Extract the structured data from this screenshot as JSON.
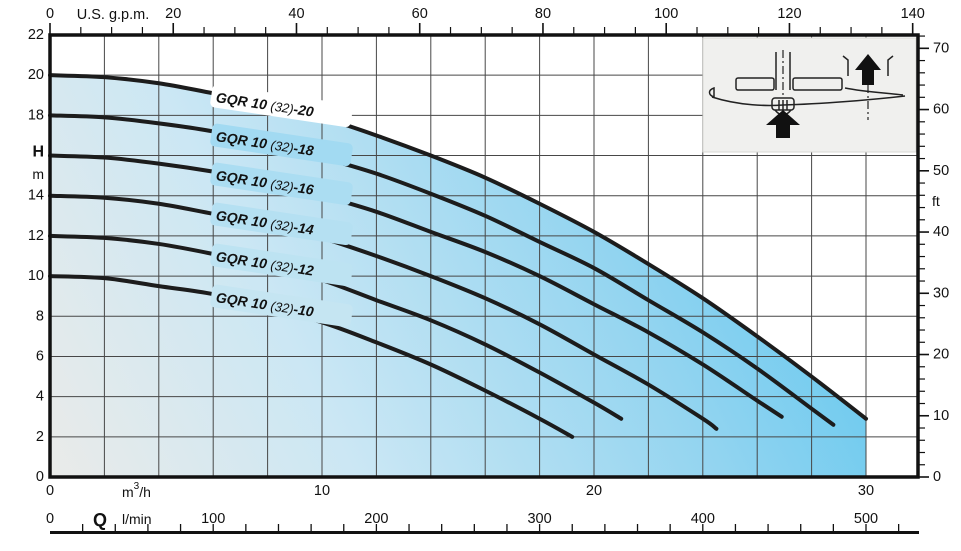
{
  "colors": {
    "background": "#ffffff",
    "grid_line": "#474747",
    "curve": "#1c1c1c",
    "border": "#111111",
    "inset_background": "#f0f0ee",
    "area_gradient_stops": [
      "#eaebe9",
      "#cbe7f4",
      "#92d4f0",
      "#4fc2ee"
    ],
    "label_halos": [
      "#ffffff",
      "#a2daf2",
      "#abddf2",
      "#b5e0f2",
      "#bde3f2",
      "#c5e5f2"
    ]
  },
  "top_axis": {
    "title": "U.S. g.p.m.",
    "tick_labels": [
      "0",
      "20",
      "40",
      "60",
      "80",
      "100",
      "120",
      "140"
    ],
    "tick_values": [
      0,
      20,
      40,
      60,
      80,
      100,
      120,
      140
    ],
    "minor_step": 5
  },
  "left_axis": {
    "symbol": "H",
    "unit": "m",
    "tick_labels": [
      "22",
      "20",
      "18",
      "14",
      "12",
      "10",
      "8",
      "6",
      "4",
      "2",
      "0"
    ],
    "tick_values": [
      22,
      20,
      18,
      14,
      12,
      10,
      8,
      6,
      4,
      2,
      0
    ]
  },
  "right_axis": {
    "unit": "ft",
    "tick_labels": [
      "70",
      "60",
      "50",
      "40",
      "30",
      "20",
      "10",
      "0"
    ],
    "tick_values": [
      70,
      60,
      50,
      40,
      30,
      20,
      10,
      0
    ],
    "minor_step": 2
  },
  "bottom_axis": {
    "flow_symbol": "Q",
    "m3h_unit_parts": {
      "base": "m",
      "sup": "3",
      "rest": "/h"
    },
    "m3h_tick_labels": [
      "0",
      "10",
      "20",
      "30"
    ],
    "m3h_tick_values": [
      0,
      10,
      20,
      30
    ],
    "lmin_unit": "l/min",
    "lmin_tick_labels": [
      "0",
      "100",
      "200",
      "300",
      "400",
      "500"
    ],
    "lmin_tick_values": [
      0,
      100,
      200,
      300,
      400,
      500
    ],
    "lmin_ruler_minor_step": 20
  },
  "inset": {
    "description": "pump cross-section schematic with upward flow arrows",
    "arrow_icon": "up-arrow"
  },
  "chart_data": {
    "type": "line",
    "title": "GQR 10 (32) pump performance curves",
    "xlabel": "Q",
    "x_units": [
      "m³/h",
      "l/min",
      "U.S. g.p.m."
    ],
    "ylabel": "H",
    "y_units": [
      "m",
      "ft"
    ],
    "xlim_m3h": [
      0,
      31.9
    ],
    "ylim_m": [
      0,
      22
    ],
    "grid": true,
    "shaded_envelope": {
      "max_q_m3h": 30,
      "note": "operating range shaded under top curve"
    },
    "series": [
      {
        "name": "GQR 10 (32)-20",
        "label_parts": {
          "prefix": "GQR 10 ",
          "mid": "(32)",
          "suffix": "-20"
        },
        "points": [
          [
            0,
            20.0
          ],
          [
            2,
            19.9
          ],
          [
            4,
            19.6
          ],
          [
            6,
            19.1
          ],
          [
            8,
            18.6
          ],
          [
            10,
            17.9
          ],
          [
            12,
            17.0
          ],
          [
            14,
            16.0
          ],
          [
            16,
            14.9
          ],
          [
            18,
            13.6
          ],
          [
            20,
            12.2
          ],
          [
            22,
            10.6
          ],
          [
            24,
            8.9
          ],
          [
            26,
            7.0
          ],
          [
            28,
            5.0
          ],
          [
            30,
            2.9
          ]
        ]
      },
      {
        "name": "GQR 10 (32)-18",
        "label_parts": {
          "prefix": "GQR 10 ",
          "mid": "(32)",
          "suffix": "-18"
        },
        "points": [
          [
            0,
            18.0
          ],
          [
            2,
            17.9
          ],
          [
            4,
            17.6
          ],
          [
            6,
            17.2
          ],
          [
            8,
            16.6
          ],
          [
            10,
            15.9
          ],
          [
            12,
            15.1
          ],
          [
            14,
            14.1
          ],
          [
            16,
            13.0
          ],
          [
            18,
            11.7
          ],
          [
            20,
            10.4
          ],
          [
            22,
            8.8
          ],
          [
            24,
            7.2
          ],
          [
            26,
            5.4
          ],
          [
            28,
            3.4
          ],
          [
            28.8,
            2.6
          ]
        ]
      },
      {
        "name": "GQR 10 (32)-16",
        "label_parts": {
          "prefix": "GQR 10 ",
          "mid": "(32)",
          "suffix": "-16"
        },
        "points": [
          [
            0,
            16.0
          ],
          [
            2,
            15.9
          ],
          [
            4,
            15.6
          ],
          [
            6,
            15.2
          ],
          [
            8,
            14.7
          ],
          [
            10,
            14.0
          ],
          [
            12,
            13.2
          ],
          [
            14,
            12.2
          ],
          [
            16,
            11.2
          ],
          [
            18,
            10.0
          ],
          [
            20,
            8.6
          ],
          [
            22,
            7.2
          ],
          [
            24,
            5.6
          ],
          [
            26,
            3.8
          ],
          [
            26.9,
            3.0
          ]
        ]
      },
      {
        "name": "GQR 10 (32)-14",
        "label_parts": {
          "prefix": "GQR 10 ",
          "mid": "(32)",
          "suffix": "-14"
        },
        "points": [
          [
            0,
            14.0
          ],
          [
            2,
            13.9
          ],
          [
            4,
            13.6
          ],
          [
            6,
            13.1
          ],
          [
            8,
            12.6
          ],
          [
            10,
            11.9
          ],
          [
            12,
            11.0
          ],
          [
            14,
            10.0
          ],
          [
            16,
            8.9
          ],
          [
            18,
            7.6
          ],
          [
            20,
            6.1
          ],
          [
            22,
            4.6
          ],
          [
            24,
            2.9
          ],
          [
            24.5,
            2.4
          ]
        ]
      },
      {
        "name": "GQR 10 (32)-12",
        "label_parts": {
          "prefix": "GQR 10 ",
          "mid": "(32)",
          "suffix": "-12"
        },
        "points": [
          [
            0,
            12.0
          ],
          [
            2,
            11.9
          ],
          [
            4,
            11.6
          ],
          [
            6,
            11.1
          ],
          [
            8,
            10.5
          ],
          [
            10,
            9.8
          ],
          [
            12,
            8.8
          ],
          [
            14,
            7.8
          ],
          [
            16,
            6.6
          ],
          [
            18,
            5.2
          ],
          [
            20,
            3.7
          ],
          [
            21,
            2.9
          ]
        ]
      },
      {
        "name": "GQR 10 (32)-10",
        "label_parts": {
          "prefix": "GQR 10 ",
          "mid": "(32)",
          "suffix": "-10"
        },
        "points": [
          [
            0,
            10.0
          ],
          [
            2,
            9.9
          ],
          [
            4,
            9.5
          ],
          [
            6,
            9.1
          ],
          [
            8,
            8.4
          ],
          [
            10,
            7.7
          ],
          [
            12,
            6.7
          ],
          [
            14,
            5.6
          ],
          [
            16,
            4.3
          ],
          [
            18,
            2.9
          ],
          [
            19.2,
            2.0
          ]
        ]
      }
    ]
  }
}
